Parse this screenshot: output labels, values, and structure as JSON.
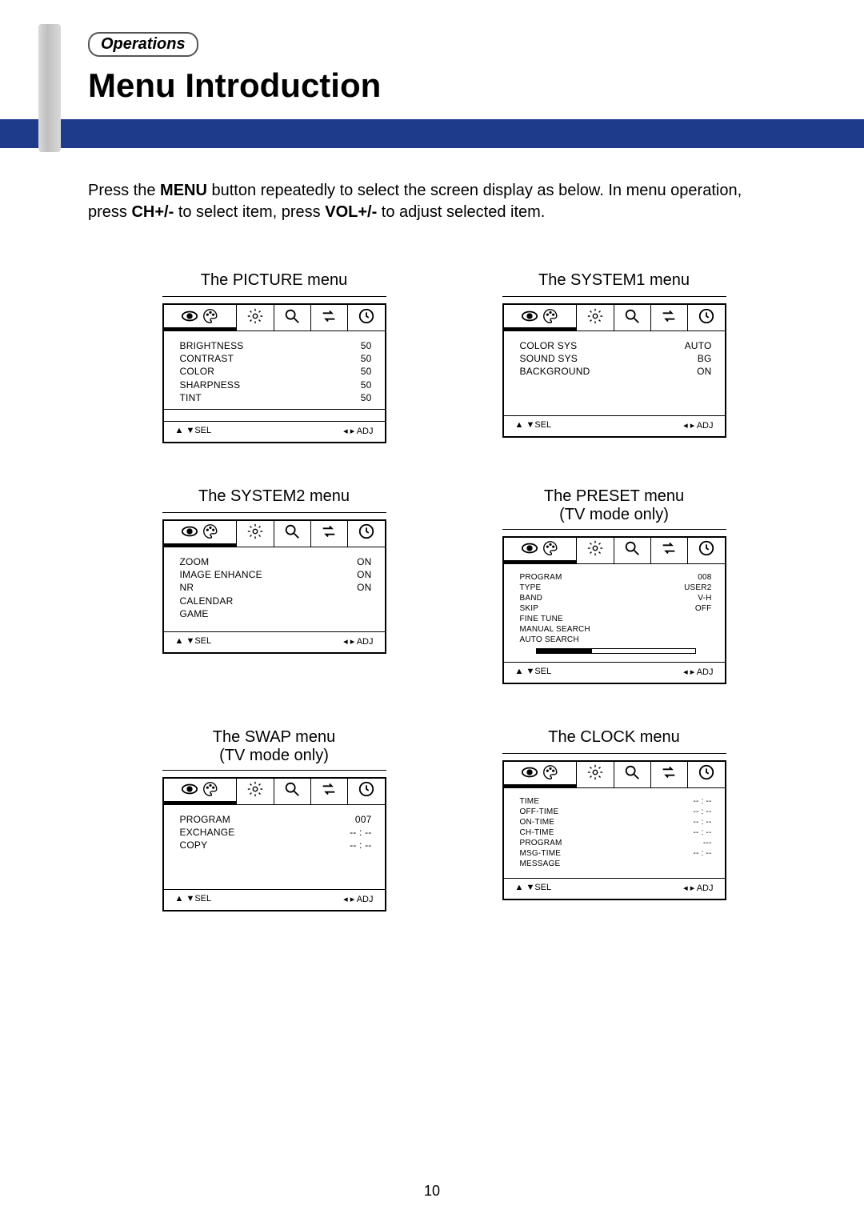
{
  "header": {
    "section_label": "Operations",
    "page_title": "Menu Introduction"
  },
  "intro": {
    "p1_pre": "Press the ",
    "p1_b1": "MENU",
    "p1_mid1": " button repeatedly to select the screen display as below. In menu operation, press ",
    "p1_b2": "CH+/-",
    "p1_mid2": " to select item, press ",
    "p1_b3": "VOL+/-",
    "p1_post": " to adjust selected item."
  },
  "footer_nav": {
    "sel_label": "SEL",
    "adj_label": "ADJ",
    "up": "▲",
    "down": "▼",
    "left": "◂",
    "right": "▸"
  },
  "blue_bar_color": "#1e3a8a",
  "menus": {
    "picture": {
      "title": "The PICTURE menu",
      "items": [
        {
          "label": "BRIGHTNESS",
          "value": "50"
        },
        {
          "label": "CONTRAST",
          "value": "50"
        },
        {
          "label": "COLOR",
          "value": "50"
        },
        {
          "label": "SHARPNESS",
          "value": "50"
        },
        {
          "label": "TINT",
          "value": "50"
        }
      ]
    },
    "system1": {
      "title": "The SYSTEM1 menu",
      "items": [
        {
          "label": "COLOR SYS",
          "value": "AUTO"
        },
        {
          "label": "SOUND SYS",
          "value": "BG"
        },
        {
          "label": "BACKGROUND",
          "value": "ON"
        }
      ]
    },
    "system2": {
      "title": "The SYSTEM2 menu",
      "items": [
        {
          "label": "ZOOM",
          "value": "ON"
        },
        {
          "label": "IMAGE ENHANCE",
          "value": "ON"
        },
        {
          "label": "NR",
          "value": "ON"
        },
        {
          "label": "CALENDAR",
          "value": ""
        },
        {
          "label": "GAME",
          "value": ""
        }
      ]
    },
    "preset": {
      "title": "The PRESET menu",
      "subtitle": "(TV mode only)",
      "progress_pct": 35,
      "items": [
        {
          "label": "PROGRAM",
          "value": "008"
        },
        {
          "label": "TYPE",
          "value": "USER2"
        },
        {
          "label": "BAND",
          "value": "V-H"
        },
        {
          "label": "SKIP",
          "value": "OFF"
        },
        {
          "label": "FINE TUNE",
          "value": ""
        },
        {
          "label": "MANUAL SEARCH",
          "value": ""
        },
        {
          "label": "AUTO SEARCH",
          "value": ""
        }
      ]
    },
    "swap": {
      "title": "The SWAP menu",
      "subtitle": "(TV mode only)",
      "items": [
        {
          "label": "PROGRAM",
          "value": "007"
        },
        {
          "label": "EXCHANGE",
          "value": "-- : --"
        },
        {
          "label": "COPY",
          "value": "-- : --"
        }
      ]
    },
    "clock": {
      "title": "The CLOCK menu",
      "items": [
        {
          "label": "TIME",
          "value": "-- : --"
        },
        {
          "label": "OFF-TIME",
          "value": "-- : --"
        },
        {
          "label": "ON-TIME",
          "value": "-- : --"
        },
        {
          "label": "CH-TIME",
          "value": "-- : --"
        },
        {
          "label": "PROGRAM",
          "value": "---"
        },
        {
          "label": "MSG-TIME",
          "value": "-- : --"
        },
        {
          "label": "MESSAGE",
          "value": ""
        }
      ]
    }
  },
  "page_number": "10"
}
